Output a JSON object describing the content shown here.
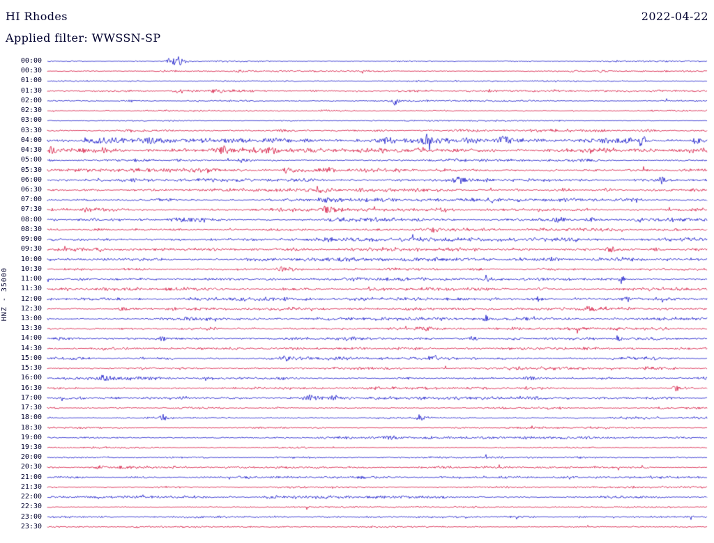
{
  "header": {
    "station": "HI Rhodes",
    "date": "2022-04-22",
    "filter_label": "Applied filter: WWSSN-SP"
  },
  "side_label": "HNZ - 35000",
  "chart_data": {
    "type": "line",
    "subtype": "helicorder-seismogram",
    "title": "HI Rhodes",
    "date": "2022-04-22",
    "filter": "WWSSN-SP",
    "channel": "HNZ",
    "scale": 35000,
    "minutes_per_row": 30,
    "rows": 48,
    "time_start": "00:00",
    "time_end": "23:59",
    "legend": "alternating trace colors per half-hour row",
    "background": "#ffffff",
    "text_color": "#00002e",
    "trace_colors": [
      "#1212c8",
      "#d40f3a"
    ],
    "row_labels": [
      "00:00",
      "00:30",
      "01:00",
      "01:30",
      "02:00",
      "02:30",
      "03:00",
      "03:30",
      "04:00",
      "04:30",
      "05:00",
      "05:30",
      "06:00",
      "06:30",
      "07:00",
      "07:30",
      "08:00",
      "08:30",
      "09:00",
      "09:30",
      "10:00",
      "10:30",
      "11:00",
      "11:30",
      "12:00",
      "12:30",
      "13:00",
      "13:30",
      "14:00",
      "14:30",
      "15:00",
      "15:30",
      "16:00",
      "16:30",
      "17:00",
      "17:30",
      "18:00",
      "18:30",
      "19:00",
      "19:30",
      "20:00",
      "20:30",
      "21:00",
      "21:30",
      "22:00",
      "22:30",
      "23:00",
      "23:30"
    ],
    "noise_profile": [
      0.6,
      0.6,
      0.5,
      0.8,
      0.7,
      0.6,
      0.6,
      1.0,
      2.2,
      1.8,
      1.1,
      1.3,
      1.2,
      1.2,
      1.3,
      1.2,
      1.5,
      1.2,
      1.5,
      1.3,
      1.4,
      1.2,
      1.3,
      1.2,
      1.3,
      1.2,
      1.2,
      1.1,
      1.3,
      1.0,
      1.2,
      1.1,
      1.2,
      1.0,
      1.1,
      0.9,
      1.0,
      0.8,
      1.0,
      0.7,
      0.8,
      0.9,
      0.9,
      0.7,
      1.1,
      0.6,
      0.7,
      0.6
    ],
    "events": [
      {
        "row": 0,
        "x": 0.185,
        "amp": 4,
        "w": 4
      },
      {
        "row": 0,
        "x": 0.197,
        "amp": 9,
        "w": 4
      },
      {
        "row": 1,
        "x": 0.29,
        "amp": 1.5,
        "w": 6
      },
      {
        "row": 1,
        "x": 0.84,
        "amp": 1.5,
        "w": 4
      },
      {
        "row": 2,
        "x": 0.56,
        "amp": 1.0,
        "w": 4
      },
      {
        "row": 3,
        "x": 0.205,
        "amp": 2.5,
        "w": 9
      },
      {
        "row": 3,
        "x": 0.255,
        "amp": 2.0,
        "w": 7
      },
      {
        "row": 3,
        "x": 0.67,
        "amp": 1.4,
        "w": 5
      },
      {
        "row": 3,
        "x": 0.77,
        "amp": 1.4,
        "w": 5
      },
      {
        "row": 4,
        "x": 0.12,
        "amp": 1.5,
        "w": 5
      },
      {
        "row": 4,
        "x": 0.527,
        "amp": 6,
        "w": 2.5
      },
      {
        "row": 5,
        "x": 0.42,
        "amp": 1.2,
        "w": 5
      },
      {
        "row": 7,
        "x": 0.36,
        "amp": 1.8,
        "w": 8
      },
      {
        "row": 7,
        "x": 0.5,
        "amp": 1.4,
        "w": 6
      },
      {
        "row": 7,
        "x": 0.905,
        "amp": 2.2,
        "w": 4
      },
      {
        "row": 8,
        "x": 0.08,
        "amp": 2,
        "w": 6
      },
      {
        "row": 8,
        "x": 0.155,
        "amp": 2,
        "w": 5
      },
      {
        "row": 8,
        "x": 0.52,
        "amp": 5,
        "w": 12
      },
      {
        "row": 8,
        "x": 0.578,
        "amp": 4,
        "w": 9
      },
      {
        "row": 8,
        "x": 0.64,
        "amp": 3,
        "w": 9
      },
      {
        "row": 8,
        "x": 0.69,
        "amp": 3,
        "w": 8
      },
      {
        "row": 8,
        "x": 0.9,
        "amp": 7,
        "w": 2.5
      },
      {
        "row": 8,
        "x": 0.985,
        "amp": 4,
        "w": 5
      },
      {
        "row": 9,
        "x": 0.006,
        "amp": 7,
        "w": 2.5
      },
      {
        "row": 9,
        "x": 0.27,
        "amp": 4,
        "w": 7
      },
      {
        "row": 9,
        "x": 0.34,
        "amp": 2.5,
        "w": 6
      },
      {
        "row": 9,
        "x": 0.62,
        "amp": 1.8,
        "w": 6
      },
      {
        "row": 10,
        "x": 0.295,
        "amp": 3.5,
        "w": 3.5
      },
      {
        "row": 10,
        "x": 0.62,
        "amp": 1.4,
        "w": 5
      },
      {
        "row": 11,
        "x": 0.25,
        "amp": 1.5,
        "w": 5
      },
      {
        "row": 11,
        "x": 0.365,
        "amp": 4.5,
        "w": 5
      },
      {
        "row": 11,
        "x": 0.425,
        "amp": 2.5,
        "w": 5
      },
      {
        "row": 12,
        "x": 0.625,
        "amp": 3.5,
        "w": 7
      },
      {
        "row": 12,
        "x": 0.932,
        "amp": 5.5,
        "w": 3.5
      },
      {
        "row": 13,
        "x": 0.42,
        "amp": 3.5,
        "w": 6
      },
      {
        "row": 13,
        "x": 0.478,
        "amp": 2,
        "w": 5
      },
      {
        "row": 13,
        "x": 0.85,
        "amp": 1.8,
        "w": 5
      },
      {
        "row": 14,
        "x": 0.42,
        "amp": 1.8,
        "w": 6
      },
      {
        "row": 14,
        "x": 0.5,
        "amp": 1.4,
        "w": 5
      },
      {
        "row": 15,
        "x": 0.06,
        "amp": 1.4,
        "w": 5
      },
      {
        "row": 15,
        "x": 0.425,
        "amp": 4,
        "w": 6
      },
      {
        "row": 16,
        "x": 0.2,
        "amp": 2,
        "w": 8
      },
      {
        "row": 16,
        "x": 0.775,
        "amp": 5,
        "w": 5
      },
      {
        "row": 16,
        "x": 0.825,
        "amp": 2,
        "w": 5
      },
      {
        "row": 17,
        "x": 0.585,
        "amp": 3.5,
        "w": 2.5
      },
      {
        "row": 17,
        "x": 0.75,
        "amp": 1.4,
        "w": 5
      },
      {
        "row": 18,
        "x": 0.3,
        "amp": 1.4,
        "w": 6
      },
      {
        "row": 19,
        "x": 0.855,
        "amp": 4,
        "w": 4.5
      },
      {
        "row": 19,
        "x": 0.92,
        "amp": 2.5,
        "w": 4
      },
      {
        "row": 20,
        "x": 0.765,
        "amp": 3.5,
        "w": 2.5
      },
      {
        "row": 21,
        "x": 0.355,
        "amp": 2.5,
        "w": 6
      },
      {
        "row": 21,
        "x": 0.655,
        "amp": 2.5,
        "w": 2.5
      },
      {
        "row": 22,
        "x": 0.665,
        "amp": 6.5,
        "w": 2.2
      },
      {
        "row": 22,
        "x": 0.87,
        "amp": 6,
        "w": 2.2
      },
      {
        "row": 23,
        "x": 0.75,
        "amp": 2,
        "w": 5
      },
      {
        "row": 24,
        "x": 0.745,
        "amp": 3.5,
        "w": 2.5
      },
      {
        "row": 24,
        "x": 0.875,
        "amp": 5.5,
        "w": 2.2
      },
      {
        "row": 25,
        "x": 0.115,
        "amp": 2,
        "w": 6
      },
      {
        "row": 25,
        "x": 0.82,
        "amp": 3.5,
        "w": 2.5
      },
      {
        "row": 26,
        "x": 0.665,
        "amp": 4.5,
        "w": 2.2
      },
      {
        "row": 27,
        "x": 0.565,
        "amp": 2.5,
        "w": 4
      },
      {
        "row": 28,
        "x": 0.175,
        "amp": 2.5,
        "w": 6
      },
      {
        "row": 28,
        "x": 0.645,
        "amp": 4.5,
        "w": 2.5
      },
      {
        "row": 28,
        "x": 0.865,
        "amp": 5.5,
        "w": 2.2
      },
      {
        "row": 30,
        "x": 0.36,
        "amp": 4.5,
        "w": 5
      },
      {
        "row": 30,
        "x": 0.585,
        "amp": 3.5,
        "w": 4.5
      },
      {
        "row": 32,
        "x": 0.085,
        "amp": 2.5,
        "w": 5
      },
      {
        "row": 32,
        "x": 0.73,
        "amp": 3.5,
        "w": 5.5
      },
      {
        "row": 33,
        "x": 0.955,
        "amp": 4.5,
        "w": 4
      },
      {
        "row": 34,
        "x": 0.4,
        "amp": 4.5,
        "w": 5
      },
      {
        "row": 34,
        "x": 0.437,
        "amp": 2.5,
        "w": 4
      },
      {
        "row": 36,
        "x": 0.175,
        "amp": 4.5,
        "w": 3.5
      },
      {
        "row": 36,
        "x": 0.565,
        "amp": 3.5,
        "w": 3.5
      },
      {
        "row": 38,
        "x": 0.52,
        "amp": 3.5,
        "w": 5.5
      },
      {
        "row": 38,
        "x": 0.578,
        "amp": 2,
        "w": 4
      },
      {
        "row": 41,
        "x": 0.08,
        "amp": 3.5,
        "w": 4.5
      },
      {
        "row": 41,
        "x": 0.113,
        "amp": 2,
        "w": 4
      },
      {
        "row": 42,
        "x": 0.15,
        "amp": 1.4,
        "w": 5
      },
      {
        "row": 44,
        "x": 0.33,
        "amp": 1.4,
        "w": 5
      },
      {
        "row": 44,
        "x": 0.6,
        "amp": 1.4,
        "w": 5
      }
    ]
  }
}
